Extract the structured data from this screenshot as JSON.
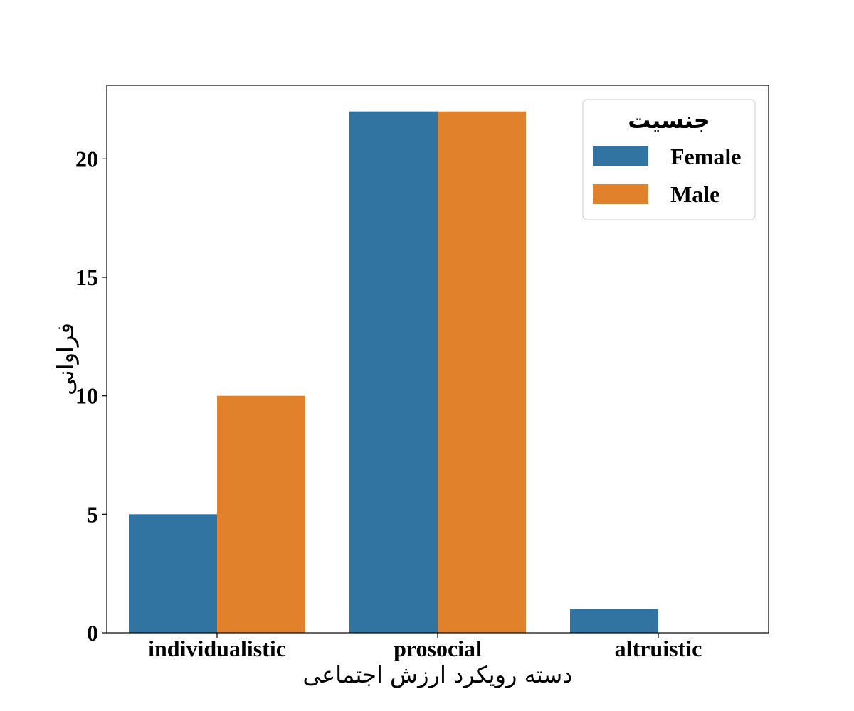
{
  "chart_data": {
    "type": "bar",
    "categories": [
      "individualistic",
      "prosocial",
      "altruistic"
    ],
    "series": [
      {
        "name": "Female",
        "values": [
          5,
          22,
          1
        ],
        "color": "#3274a1"
      },
      {
        "name": "Male",
        "values": [
          10,
          22,
          0
        ],
        "color": "#e1812c"
      }
    ],
    "xlabel": "دسته رویکرد ارزش اجتماعی",
    "ylabel": "فراوانی",
    "ylim": [
      0,
      23.1
    ],
    "yticks": [
      0,
      5,
      10,
      15,
      20
    ],
    "legend": {
      "title": "جنسیت",
      "placement": "top-right"
    },
    "grid": false
  }
}
